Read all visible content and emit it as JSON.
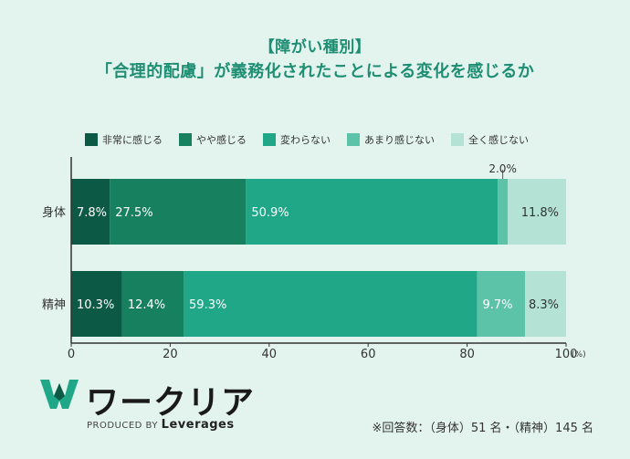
{
  "header": {
    "title1": "【障がい種別】",
    "title2": "「合理的配慮」が義務化されたことによる変化を感じるか"
  },
  "legend": [
    {
      "label": "非常に感じる",
      "color": "#0c5a45"
    },
    {
      "label": "やや感じる",
      "color": "#17805f"
    },
    {
      "label": "変わらない",
      "color": "#1fa787"
    },
    {
      "label": "あまり感じない",
      "color": "#5cc3a8"
    },
    {
      "label": "全く感じない",
      "color": "#b4e3d6"
    }
  ],
  "chart_data": {
    "type": "bar",
    "orientation": "horizontal",
    "stacked": true,
    "categories": [
      "身体",
      "精神"
    ],
    "series": [
      {
        "name": "非常に感じる",
        "values": [
          7.8,
          10.3
        ],
        "labels": [
          "7.8%",
          "10.3%"
        ]
      },
      {
        "name": "やや感じる",
        "values": [
          27.5,
          12.4
        ],
        "labels": [
          "27.5%",
          "12.4%"
        ]
      },
      {
        "name": "変わらない",
        "values": [
          50.9,
          59.3
        ],
        "labels": [
          "50.9%",
          "59.3%"
        ]
      },
      {
        "name": "あまり感じない",
        "values": [
          2.0,
          9.7
        ],
        "labels": [
          "2.0%",
          "9.7%"
        ]
      },
      {
        "name": "全く感じない",
        "values": [
          11.8,
          8.3
        ],
        "labels": [
          "11.8%",
          "8.3%"
        ]
      }
    ],
    "xlim": [
      0,
      100
    ],
    "xticks": [
      "0",
      "20",
      "40",
      "60",
      "80",
      "100"
    ],
    "xunit": "(%)",
    "grid": false,
    "legend_position": "top"
  },
  "footer": {
    "logo_text": "ワークリア",
    "logo_sub_prefix": "PRODUCED BY",
    "logo_sub_brand": "Leverages",
    "note": "※回答数：（身体）51 名・（精神）145 名"
  }
}
